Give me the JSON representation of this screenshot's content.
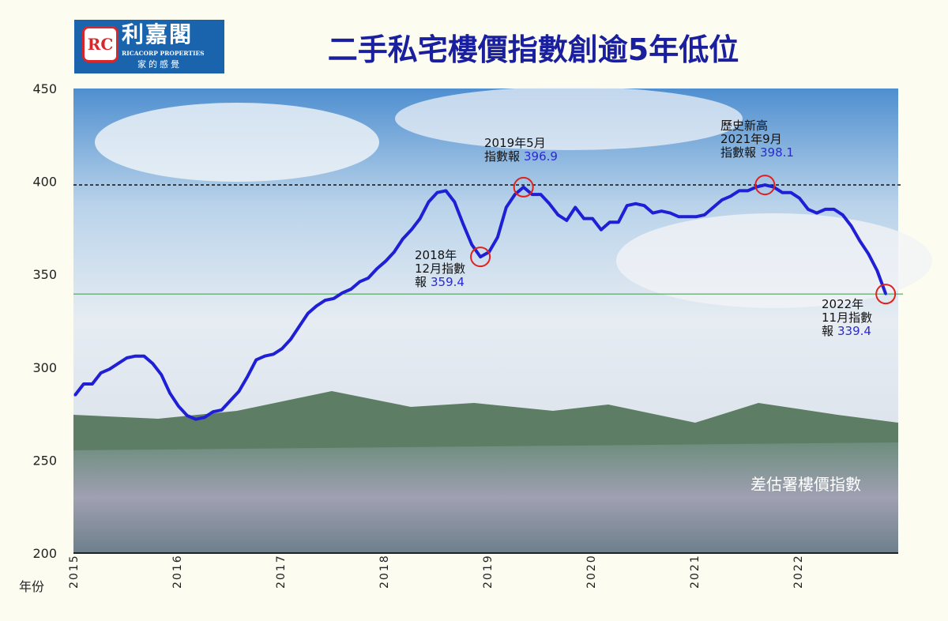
{
  "logo": {
    "cn": "利嘉閣",
    "en": "RICACORP PROPERTIES",
    "slogan": "家的感覺"
  },
  "chart_data": {
    "type": "line",
    "title": "二手私宅樓價指數創逾5年低位",
    "xlabel": "年份",
    "ylabel": "",
    "ylim": [
      200,
      450
    ],
    "yticks": [
      450,
      400,
      350,
      300,
      250,
      200
    ],
    "xticks": [
      "2015",
      "2016",
      "2017",
      "2018",
      "2019",
      "2020",
      "2021",
      "2022"
    ],
    "series_label": "差估署樓價指數",
    "line_color": "#1f1fd6",
    "x": [
      "2015-01",
      "2015-02",
      "2015-03",
      "2015-04",
      "2015-05",
      "2015-06",
      "2015-07",
      "2015-08",
      "2015-09",
      "2015-10",
      "2015-11",
      "2015-12",
      "2016-01",
      "2016-02",
      "2016-03",
      "2016-04",
      "2016-05",
      "2016-06",
      "2016-07",
      "2016-08",
      "2016-09",
      "2016-10",
      "2016-11",
      "2016-12",
      "2017-01",
      "2017-02",
      "2017-03",
      "2017-04",
      "2017-05",
      "2017-06",
      "2017-07",
      "2017-08",
      "2017-09",
      "2017-10",
      "2017-11",
      "2017-12",
      "2018-01",
      "2018-02",
      "2018-03",
      "2018-04",
      "2018-05",
      "2018-06",
      "2018-07",
      "2018-08",
      "2018-09",
      "2018-10",
      "2018-11",
      "2018-12",
      "2019-01",
      "2019-02",
      "2019-03",
      "2019-04",
      "2019-05",
      "2019-06",
      "2019-07",
      "2019-08",
      "2019-09",
      "2019-10",
      "2019-11",
      "2019-12",
      "2020-01",
      "2020-02",
      "2020-03",
      "2020-04",
      "2020-05",
      "2020-06",
      "2020-07",
      "2020-08",
      "2020-09",
      "2020-10",
      "2020-11",
      "2020-12",
      "2021-01",
      "2021-02",
      "2021-03",
      "2021-04",
      "2021-05",
      "2021-06",
      "2021-07",
      "2021-08",
      "2021-09",
      "2021-10",
      "2021-11",
      "2021-12",
      "2022-01",
      "2022-02",
      "2022-03",
      "2022-04",
      "2022-05",
      "2022-06",
      "2022-07",
      "2022-08",
      "2022-09",
      "2022-10",
      "2022-11"
    ],
    "values": [
      285,
      291,
      291,
      297,
      299,
      302,
      305,
      306,
      306,
      302,
      296,
      286,
      279,
      274,
      272,
      273,
      276,
      277,
      282,
      287,
      295,
      304,
      306,
      307,
      310,
      315,
      322,
      329,
      333,
      336,
      337,
      340,
      342,
      346,
      348,
      353,
      357,
      362,
      369,
      374,
      380,
      389,
      394,
      395,
      389,
      377,
      366,
      359.4,
      362,
      370,
      386,
      393,
      396.9,
      393,
      393,
      388,
      382,
      379,
      386,
      380,
      380,
      374,
      378,
      378,
      387,
      388,
      387,
      383,
      384,
      383,
      381,
      381,
      381,
      382,
      386,
      390,
      392,
      395,
      395,
      397,
      398.1,
      397,
      394,
      394,
      391,
      385,
      383,
      385,
      385,
      382,
      376,
      368,
      361,
      352,
      339.4
    ],
    "reference_lines": [
      {
        "value": 398.1,
        "style": "dashed",
        "color": "#000000"
      },
      {
        "value": 339.4,
        "style": "solid",
        "color": "#3a9a4a"
      }
    ],
    "annotations": [
      {
        "x": "2018-12",
        "value": 359.4,
        "lines": [
          "2018年",
          "12月指數",
          "報"
        ],
        "num": "359.4"
      },
      {
        "x": "2019-05",
        "value": 396.9,
        "lines": [
          "2019年5月",
          "指數報"
        ],
        "num": "396.9"
      },
      {
        "x": "2021-09",
        "value": 398.1,
        "lines": [
          "歷史新高",
          "2021年9月",
          "指數報"
        ],
        "num": "398.1"
      },
      {
        "x": "2022-11",
        "value": 339.4,
        "lines": [
          "2022年",
          "11月指數",
          "報"
        ],
        "num": "339.4"
      }
    ]
  }
}
